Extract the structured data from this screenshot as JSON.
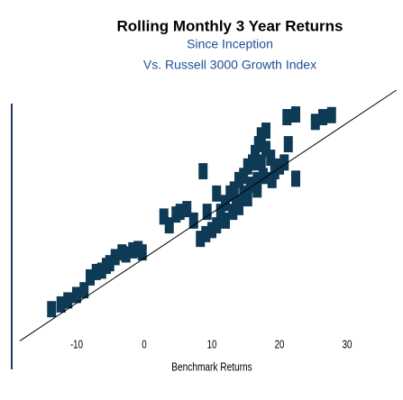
{
  "chart_data": {
    "type": "scatter",
    "title": "Rolling Monthly 3 Year Returns",
    "subtitle": "Since Inception",
    "subtitle2": "Vs. Russell 3000 Growth Index",
    "x_label": "Benchmark Returns",
    "color": "#0e3a56",
    "x": [
      -13.7,
      -12.3,
      -11.3,
      -10.0,
      -8.9,
      -8.0,
      -7.1,
      -6.3,
      -5.6,
      -5.1,
      -4.3,
      -3.3,
      -2.7,
      -1.7,
      -0.9,
      -0.3,
      2.9,
      3.7,
      4.7,
      5.3,
      6.3,
      8.3,
      9.1,
      8.7,
      10.0,
      10.7,
      11.3,
      12.0,
      12.7,
      13.3,
      14.0,
      14.7,
      15.3,
      16.0,
      16.4,
      16.9,
      17.3,
      18.0,
      18.7,
      19.3,
      20.0,
      20.7,
      21.3,
      22.4,
      21.1,
      22.4,
      25.3,
      26.4,
      27.7,
      12.0,
      13.1,
      13.6,
      14.7,
      15.7,
      16.7,
      17.6,
      18.9,
      14.0,
      15.3,
      10.7,
      9.3,
      17.3,
      18.0,
      16.7,
      7.3
    ],
    "values": [
      -7.6,
      -6.9,
      -6.3,
      -5.5,
      -4.8,
      -2.9,
      -2.1,
      -1.9,
      -1.2,
      -0.8,
      0.1,
      0.8,
      0.5,
      1.1,
      1.3,
      0.8,
      6.1,
      4.8,
      6.4,
      6.8,
      7.2,
      2.8,
      3.5,
      12.8,
      4.1,
      4.8,
      6.8,
      8.1,
      9.5,
      10.1,
      11.5,
      12.1,
      13.5,
      14.1,
      15.5,
      16.8,
      18.1,
      18.8,
      14.8,
      12.8,
      13.5,
      14.1,
      16.8,
      11.7,
      20.8,
      21.2,
      20.1,
      20.8,
      21.1,
      5.5,
      6.8,
      8.1,
      9.5,
      10.8,
      11.5,
      12.1,
      11.5,
      7.5,
      8.8,
      9.5,
      6.8,
      14.1,
      16.1,
      10.1,
      5.5
    ],
    "trend_line": {
      "x": [
        -18.4,
        37.3
      ],
      "values": [
        -12.3,
        24.8
      ],
      "color": "#000000"
    },
    "xlim": [
      -19.6,
      38.2
    ],
    "ylim": [
      -16.5,
      24.8
    ],
    "xticks": [
      -10,
      0,
      10,
      20,
      30
    ],
    "axis_color": "#1f3864",
    "title_color": "#000000",
    "subtitle_color": "#1f4e99"
  }
}
